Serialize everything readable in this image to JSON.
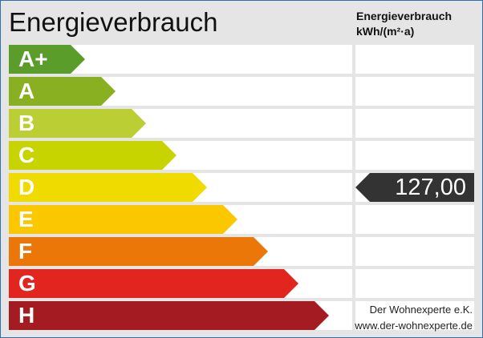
{
  "title": "Energieverbrauch",
  "column_header": {
    "line1": "Energieverbrauch",
    "line2": "kWh/(m²·a)"
  },
  "classes": [
    {
      "label": "A+",
      "color": "#5a9d2a"
    },
    {
      "label": "A",
      "color": "#88b020"
    },
    {
      "label": "B",
      "color": "#bbcf34"
    },
    {
      "label": "C",
      "color": "#c8d400"
    },
    {
      "label": "D",
      "color": "#efdb00"
    },
    {
      "label": "E",
      "color": "#fbc800"
    },
    {
      "label": "F",
      "color": "#ec7709"
    },
    {
      "label": "G",
      "color": "#e2261f"
    },
    {
      "label": "H",
      "color": "#a41b22"
    }
  ],
  "value": {
    "text": "127,00",
    "class": "D",
    "color": "#333333"
  },
  "footer": {
    "company": "Der Wohnexperte e.K.",
    "website": "www.der-wohnexperte.de"
  }
}
